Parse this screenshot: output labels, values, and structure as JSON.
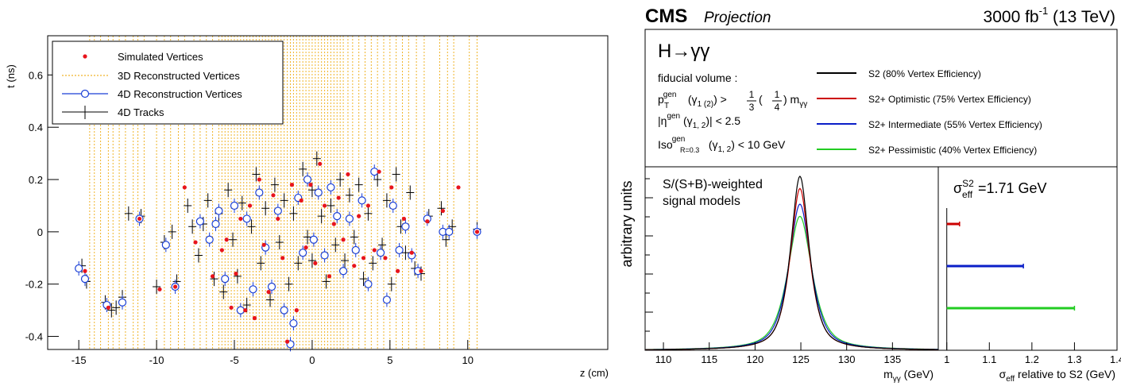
{
  "chart_data": [
    {
      "type": "scatter",
      "xlabel": "z (cm)",
      "ylabel": "t (ns)",
      "xlim": [
        -17,
        19
      ],
      "ylim": [
        -0.45,
        0.75
      ],
      "x_ticks": [
        "-15",
        "-10",
        "-5",
        "0",
        "5",
        "10"
      ],
      "y_ticks": [
        "-0.4",
        "-0.2",
        "0",
        "0.2",
        "0.4",
        "0.6"
      ],
      "legend_position": "top-left",
      "legend": [
        {
          "label": "Simulated Vertices",
          "color": "#e8141c",
          "marker": "dot"
        },
        {
          "label": "3D Reconstructed Vertices",
          "color": "#f0b429",
          "marker": "dashed-line"
        },
        {
          "label": "4D Reconstruction Vertices",
          "color": "#1a3fd6",
          "marker": "open-circle"
        },
        {
          "label": "4D Tracks",
          "color": "#000000",
          "marker": "error-cross"
        }
      ],
      "vertices_3d_z": [
        -14.3,
        -14.0,
        -13.6,
        -13.1,
        -12.8,
        -12.4,
        -12.0,
        -11.5,
        -11.2,
        -10.8,
        -10.0,
        -9.5,
        -9.1,
        -8.6,
        -8.2,
        -7.6,
        -7.2,
        -6.8,
        -6.4,
        -6.0,
        -5.8,
        -5.6,
        -5.4,
        -5.2,
        -5.0,
        -4.8,
        -4.6,
        -4.4,
        -4.2,
        -4.0,
        -3.8,
        -3.6,
        -3.4,
        -3.2,
        -3.0,
        -2.8,
        -2.6,
        -2.4,
        -2.2,
        -2.0,
        -1.8,
        -1.6,
        -1.4,
        -1.2,
        -1.0,
        -0.8,
        -0.6,
        -0.4,
        -0.2,
        0.0,
        0.2,
        0.4,
        0.6,
        0.8,
        1.0,
        1.2,
        1.4,
        1.6,
        1.8,
        2.0,
        2.3,
        2.6,
        3.0,
        3.4,
        3.8,
        4.2,
        4.6,
        5.0,
        5.4,
        5.8,
        6.2,
        6.7,
        7.2,
        8.2,
        8.7,
        9.1,
        10.1,
        10.6
      ],
      "simulated": [
        [
          -14.6,
          -0.15
        ],
        [
          -13.1,
          -0.29
        ],
        [
          -11.1,
          0.05
        ],
        [
          -9.8,
          -0.22
        ],
        [
          -8.8,
          -0.21
        ],
        [
          -8.2,
          0.17
        ],
        [
          -7.5,
          -0.04
        ],
        [
          -6.4,
          -0.17
        ],
        [
          -5.8,
          -0.07
        ],
        [
          -5.5,
          -0.03
        ],
        [
          -5.2,
          -0.29
        ],
        [
          -4.9,
          -0.16
        ],
        [
          -4.6,
          0.05
        ],
        [
          -4.3,
          -0.3
        ],
        [
          -4.0,
          0.1
        ],
        [
          -3.7,
          -0.33
        ],
        [
          -3.4,
          0.2
        ],
        [
          -3.1,
          -0.05
        ],
        [
          -2.8,
          -0.23
        ],
        [
          -2.5,
          0.14
        ],
        [
          -2.2,
          0.05
        ],
        [
          -1.9,
          -0.1
        ],
        [
          -1.6,
          -0.42
        ],
        [
          -1.3,
          0.18
        ],
        [
          -1.0,
          -0.3
        ],
        [
          -0.7,
          0.12
        ],
        [
          -0.4,
          -0.06
        ],
        [
          -0.1,
          0.18
        ],
        [
          0.2,
          -0.12
        ],
        [
          0.5,
          0.26
        ],
        [
          0.8,
          0.1
        ],
        [
          1.1,
          -0.17
        ],
        [
          1.4,
          0.03
        ],
        [
          1.7,
          0.13
        ],
        [
          2.0,
          -0.03
        ],
        [
          2.3,
          0.22
        ],
        [
          2.7,
          -0.13
        ],
        [
          3.0,
          0.06
        ],
        [
          3.3,
          -0.1
        ],
        [
          3.6,
          0.1
        ],
        [
          4.0,
          -0.07
        ],
        [
          4.3,
          0.23
        ],
        [
          4.7,
          -0.1
        ],
        [
          5.1,
          0.17
        ],
        [
          5.5,
          -0.15
        ],
        [
          5.9,
          0.05
        ],
        [
          6.4,
          -0.08
        ],
        [
          7.0,
          -0.15
        ],
        [
          7.4,
          0.04
        ],
        [
          8.4,
          0.08
        ],
        [
          9.4,
          0.17
        ],
        [
          10.6,
          0.0
        ]
      ],
      "reco_4d": [
        [
          -15.0,
          -0.14
        ],
        [
          -14.6,
          -0.18
        ],
        [
          -13.2,
          -0.28
        ],
        [
          -12.2,
          -0.27
        ],
        [
          -11.1,
          0.05
        ],
        [
          -9.4,
          -0.05
        ],
        [
          -8.8,
          -0.21
        ],
        [
          -7.2,
          0.04
        ],
        [
          -6.6,
          -0.03
        ],
        [
          -6.2,
          0.03
        ],
        [
          -6.0,
          0.08
        ],
        [
          -5.6,
          -0.18
        ],
        [
          -5.0,
          0.1
        ],
        [
          -4.6,
          -0.3
        ],
        [
          -4.2,
          0.05
        ],
        [
          -3.8,
          -0.22
        ],
        [
          -3.4,
          0.15
        ],
        [
          -3.0,
          -0.06
        ],
        [
          -2.6,
          -0.21
        ],
        [
          -2.2,
          0.08
        ],
        [
          -1.8,
          -0.3
        ],
        [
          -1.4,
          -0.43
        ],
        [
          -1.2,
          -0.35
        ],
        [
          -0.9,
          0.13
        ],
        [
          -0.6,
          -0.08
        ],
        [
          -0.3,
          0.2
        ],
        [
          0.1,
          -0.03
        ],
        [
          0.4,
          0.15
        ],
        [
          0.8,
          -0.09
        ],
        [
          1.2,
          0.17
        ],
        [
          1.6,
          0.06
        ],
        [
          2.0,
          -0.15
        ],
        [
          2.4,
          0.05
        ],
        [
          2.8,
          -0.07
        ],
        [
          3.2,
          0.12
        ],
        [
          3.6,
          -0.2
        ],
        [
          4.0,
          0.23
        ],
        [
          4.4,
          -0.08
        ],
        [
          4.8,
          -0.26
        ],
        [
          5.2,
          0.1
        ],
        [
          5.6,
          -0.07
        ],
        [
          6.0,
          0.02
        ],
        [
          6.4,
          -0.09
        ],
        [
          6.8,
          -0.15
        ],
        [
          7.4,
          0.05
        ],
        [
          8.4,
          0.0
        ],
        [
          8.8,
          0.0
        ],
        [
          10.6,
          0.0
        ]
      ],
      "tracks_4d": [
        [
          -14.8,
          -0.13
        ],
        [
          -14.5,
          -0.19
        ],
        [
          -13.3,
          -0.27
        ],
        [
          -12.9,
          -0.3
        ],
        [
          -12.6,
          -0.29
        ],
        [
          -12.2,
          -0.25
        ],
        [
          -11.8,
          0.07
        ],
        [
          -11.0,
          0.06
        ],
        [
          -10.0,
          -0.21
        ],
        [
          -9.5,
          -0.04
        ],
        [
          -9.0,
          0.0
        ],
        [
          -8.7,
          -0.19
        ],
        [
          -8.0,
          0.1
        ],
        [
          -7.7,
          0.02
        ],
        [
          -7.3,
          -0.09
        ],
        [
          -7.0,
          0.03
        ],
        [
          -6.7,
          0.12
        ],
        [
          -6.3,
          -0.18
        ],
        [
          -6.0,
          0.07
        ],
        [
          -5.7,
          -0.23
        ],
        [
          -5.4,
          0.16
        ],
        [
          -5.1,
          -0.03
        ],
        [
          -4.8,
          -0.17
        ],
        [
          -4.5,
          0.11
        ],
        [
          -4.2,
          -0.28
        ],
        [
          -3.9,
          0.02
        ],
        [
          -3.6,
          0.22
        ],
        [
          -3.3,
          -0.12
        ],
        [
          -3.0,
          0.09
        ],
        [
          -2.7,
          -0.26
        ],
        [
          -2.4,
          0.18
        ],
        [
          -2.1,
          -0.04
        ],
        [
          -1.8,
          0.12
        ],
        [
          -1.5,
          -0.2
        ],
        [
          -1.2,
          0.07
        ],
        [
          -0.9,
          -0.12
        ],
        [
          -0.6,
          0.24
        ],
        [
          -0.3,
          -0.02
        ],
        [
          0.0,
          0.16
        ],
        [
          0.0,
          -0.11
        ],
        [
          0.3,
          0.28
        ],
        [
          0.6,
          0.06
        ],
        [
          0.9,
          -0.19
        ],
        [
          1.2,
          0.1
        ],
        [
          1.5,
          -0.05
        ],
        [
          1.8,
          0.2
        ],
        [
          2.1,
          -0.11
        ],
        [
          2.4,
          0.14
        ],
        [
          2.7,
          -0.02
        ],
        [
          3.0,
          0.18
        ],
        [
          3.3,
          -0.18
        ],
        [
          3.6,
          0.07
        ],
        [
          3.9,
          -0.12
        ],
        [
          4.2,
          0.2
        ],
        [
          4.5,
          -0.05
        ],
        [
          4.8,
          0.12
        ],
        [
          5.1,
          -0.2
        ],
        [
          5.4,
          0.22
        ],
        [
          5.7,
          0.02
        ],
        [
          6.0,
          -0.08
        ],
        [
          6.3,
          0.15
        ],
        [
          6.6,
          -0.14
        ],
        [
          7.0,
          -0.16
        ],
        [
          7.5,
          0.06
        ],
        [
          8.3,
          0.09
        ],
        [
          8.6,
          -0.03
        ],
        [
          9.0,
          0.02
        ],
        [
          10.6,
          0.01
        ]
      ]
    },
    {
      "type": "line",
      "title": "H→γγ",
      "header_left": "CMS",
      "header_left_sub": "Projection",
      "header_right": "3000 fb",
      "header_right_sup": "-1",
      "header_right_tail": " (13 TeV)",
      "fiducial": {
        "line1": "fiducial volume :",
        "line2_a": "p",
        "line2_sup": "gen",
        "line2_sub": "T",
        "line2_b": " (γ",
        "line2_c": "1 (2)",
        "line2_d": ") > ",
        "frac1_n": "1",
        "frac1_d": "3",
        "line2_e": " ( ",
        "frac2_n": "1",
        "frac2_d": "4",
        "line2_f": " ) m",
        "line2_g": "γγ",
        "line3_a": "|η",
        "line3_sup": "gen",
        "line3_b": " (γ",
        "line3_c": "1, 2",
        "line3_d": ")| < 2.5",
        "line4_a": "Iso",
        "line4_sup": "gen",
        "line4_sub": "R=0.3",
        "line4_b": " (γ",
        "line4_c": "1, 2",
        "line4_d": ") < 10 GeV"
      },
      "series": [
        {
          "name": "S2 (80% Vertex Efficiency)",
          "color": "#000000",
          "sigma_eff_rel": 1.0,
          "peak": 1.0
        },
        {
          "name": "S2+ Optimistic (75% Vertex Efficiency)",
          "color": "#cc0000",
          "sigma_eff_rel": 1.03,
          "peak": 0.93
        },
        {
          "name": "S2+ Intermediate (55% Vertex Efficiency)",
          "color": "#0a1ec8",
          "sigma_eff_rel": 1.18,
          "peak": 0.84
        },
        {
          "name": "S2+ Pessimistic (40% Vertex Efficiency)",
          "color": "#22cc22",
          "sigma_eff_rel": 1.3,
          "peak": 0.77
        }
      ],
      "mass_peak": 124.9,
      "xlim": [
        108,
        140
      ],
      "x_ticks": [
        "110",
        "115",
        "120",
        "125",
        "130",
        "135"
      ],
      "xlabel_a": "m",
      "xlabel_sub": "γγ",
      "xlabel_b": " (GeV)",
      "ylabel": "arbitrary units",
      "signal_label_1": "S/(S+B)-weighted",
      "signal_label_2": "signal models"
    },
    {
      "type": "bar",
      "label_a": "σ",
      "label_sup": "S2",
      "label_sub": "eff",
      "label_b": "=1.71 GeV",
      "xlim": [
        0.98,
        1.4
      ],
      "x_ticks": [
        "1",
        "1.1",
        "1.2",
        "1.3",
        "1.4"
      ],
      "xlabel_a": "σ",
      "xlabel_sub": "eff",
      "xlabel_b": " relative to S2 (GeV)",
      "bars": [
        {
          "value": 1.03,
          "color": "#cc0000"
        },
        {
          "value": 1.18,
          "color": "#0a1ec8"
        },
        {
          "value": 1.3,
          "color": "#22cc22"
        }
      ]
    }
  ]
}
